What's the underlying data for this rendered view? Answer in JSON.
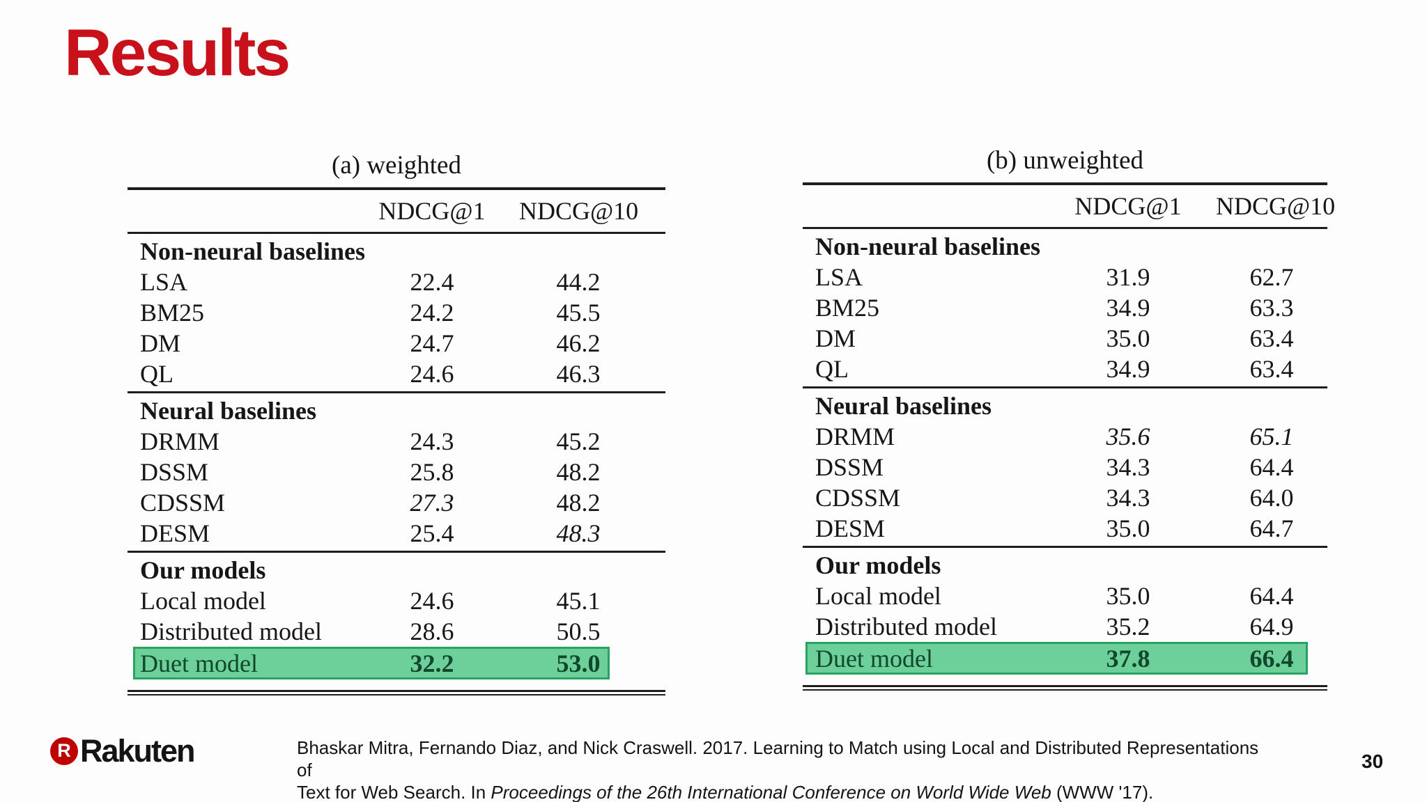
{
  "slide": {
    "title": "Results",
    "accent_red": "#c9111b",
    "highlight": {
      "fill": "#6dcf9a",
      "border": "#2aa262",
      "text": "#11472a"
    }
  },
  "tables": [
    {
      "caption": "(a) weighted",
      "columns": [
        "NDCG@1",
        "NDCG@10"
      ],
      "sections": [
        {
          "heading": "Non-neural baselines",
          "rows": [
            {
              "label": "LSA",
              "ndcg1": "22.4",
              "ndcg10": "44.2"
            },
            {
              "label": "BM25",
              "ndcg1": "24.2",
              "ndcg10": "45.5"
            },
            {
              "label": "DM",
              "ndcg1": "24.7",
              "ndcg10": "46.2"
            },
            {
              "label": "QL",
              "ndcg1": "24.6",
              "ndcg10": "46.3"
            }
          ]
        },
        {
          "heading": "Neural baselines",
          "rows": [
            {
              "label": "DRMM",
              "ndcg1": "24.3",
              "ndcg10": "45.2"
            },
            {
              "label": "DSSM",
              "ndcg1": "25.8",
              "ndcg10": "48.2"
            },
            {
              "label": "CDSSM",
              "ndcg1": "27.3",
              "ndcg10": "48.2"
            },
            {
              "label": "DESM",
              "ndcg1": "25.4",
              "ndcg10": "48.3"
            }
          ]
        },
        {
          "heading": "Our models",
          "rows": [
            {
              "label": "Local model",
              "ndcg1": "24.6",
              "ndcg10": "45.1"
            },
            {
              "label": "Distributed model",
              "ndcg1": "28.6",
              "ndcg10": "50.5"
            },
            {
              "label": "Duet model",
              "ndcg1": "32.2",
              "ndcg10": "53.0"
            }
          ]
        }
      ]
    },
    {
      "caption": "(b) unweighted",
      "columns": [
        "NDCG@1",
        "NDCG@10"
      ],
      "sections": [
        {
          "heading": "Non-neural baselines",
          "rows": [
            {
              "label": "LSA",
              "ndcg1": "31.9",
              "ndcg10": "62.7"
            },
            {
              "label": "BM25",
              "ndcg1": "34.9",
              "ndcg10": "63.3"
            },
            {
              "label": "DM",
              "ndcg1": "35.0",
              "ndcg10": "63.4"
            },
            {
              "label": "QL",
              "ndcg1": "34.9",
              "ndcg10": "63.4"
            }
          ]
        },
        {
          "heading": "Neural baselines",
          "rows": [
            {
              "label": "DRMM",
              "ndcg1": "35.6",
              "ndcg10": "65.1"
            },
            {
              "label": "DSSM",
              "ndcg1": "34.3",
              "ndcg10": "64.4"
            },
            {
              "label": "CDSSM",
              "ndcg1": "34.3",
              "ndcg10": "64.0"
            },
            {
              "label": "DESM",
              "ndcg1": "35.0",
              "ndcg10": "64.7"
            }
          ]
        },
        {
          "heading": "Our models",
          "rows": [
            {
              "label": "Local model",
              "ndcg1": "35.0",
              "ndcg10": "64.4"
            },
            {
              "label": "Distributed model",
              "ndcg1": "35.2",
              "ndcg10": "64.9"
            },
            {
              "label": "Duet model",
              "ndcg1": "37.8",
              "ndcg10": "66.4"
            }
          ]
        }
      ]
    }
  ],
  "footer": {
    "logo_letter": "R",
    "logo_text": "Rakuten",
    "citation_line1": "Bhaskar Mitra, Fernando Diaz, and Nick Craswell. 2017. Learning to Match using Local and Distributed Representations of",
    "citation_line2_prefix": "Text for Web Search. In ",
    "citation_line2_italic": "Proceedings of the 26th International Conference on World Wide Web",
    "citation_line2_suffix": " (WWW '17).",
    "page_number": "30"
  }
}
